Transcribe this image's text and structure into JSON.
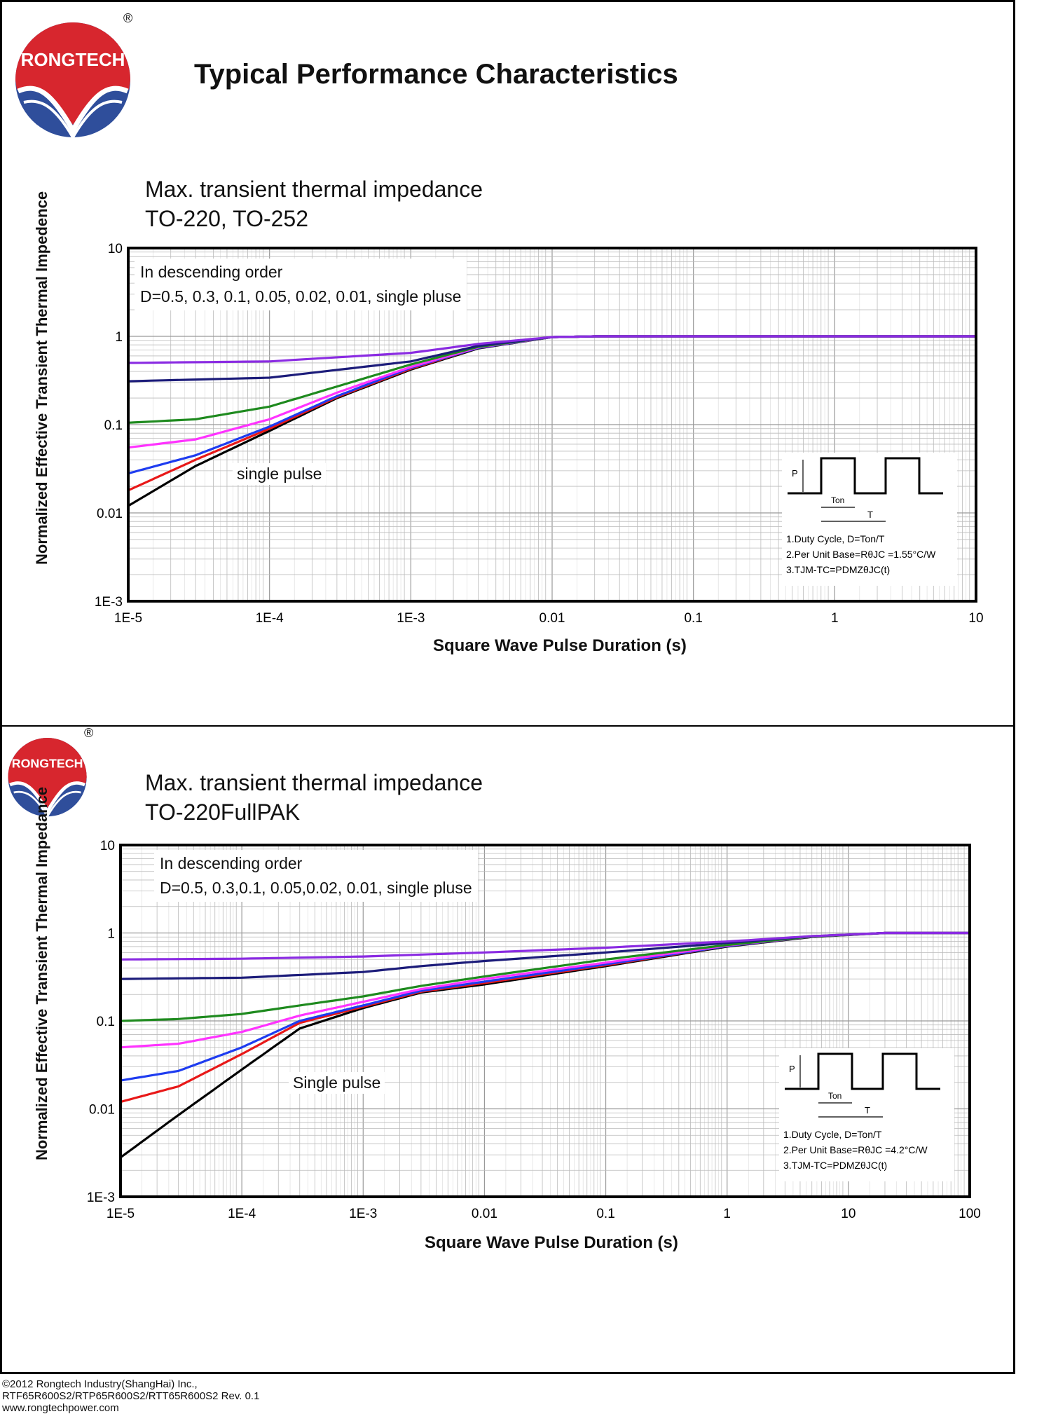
{
  "page": {
    "title": "Typical Performance Characteristics",
    "brand": "RONGTECH",
    "registered_mark": "®"
  },
  "footer": {
    "copyright": "©2012 Rongtech Industry(ShangHai) Inc.,",
    "models": "RTF65R600S2/RTP65R600S2/RTT65R600S2  Rev. 0.1",
    "website": "www.rongtechpower.com"
  },
  "colors": {
    "d05": "#8a2be2",
    "d03": "#1c1c7a",
    "d01": "#1e8a1e",
    "d005": "#ff33ff",
    "d002": "#1e3cf0",
    "d001": "#e81818",
    "single": "#000000",
    "logo_red": "#d7262e",
    "logo_blue": "#2f4e9b"
  },
  "chart_data": [
    {
      "type": "line",
      "title": "Max. transient thermal impedance",
      "subtitle": "TO-220, TO-252",
      "xlabel": "Square Wave Pulse Duration (s)",
      "ylabel": "Normalized Effective Transient Thermal Impedence",
      "x_scale": "log",
      "y_scale": "log",
      "xlim": [
        1e-05,
        10
      ],
      "ylim": [
        0.001,
        10
      ],
      "x_ticks": [
        "1E-5",
        "1E-4",
        "1E-3",
        "0.01",
        "0.1",
        "1",
        "10"
      ],
      "y_ticks": [
        "1E-3",
        "0.01",
        "0.1",
        "1",
        "10"
      ],
      "grid": true,
      "legend_line1": "In descending order",
      "legend_line2": "D=0.5, 0.3, 0.1, 0.05, 0.02, 0.01, single pluse",
      "annotation": "single pulse",
      "notes": {
        "n1": "1.Duty Cycle, D=Ton/T",
        "n2": "2.Per Unit Base=RθJC =1.55°C/W",
        "n3": "3.TJM-TC=PDMZθJC(t)",
        "p": "P",
        "ton": "Ton",
        "t": "T"
      },
      "series": [
        {
          "name": "D=0.5",
          "color_key": "d05",
          "x": [
            1e-05,
            0.0001,
            0.001,
            0.003,
            0.01,
            0.02,
            10
          ],
          "y": [
            0.5,
            0.52,
            0.65,
            0.82,
            0.98,
            1.0,
            1.0
          ]
        },
        {
          "name": "D=0.3",
          "color_key": "d03",
          "x": [
            1e-05,
            0.0001,
            0.001,
            0.003,
            0.01,
            0.02,
            10
          ],
          "y": [
            0.31,
            0.34,
            0.52,
            0.78,
            0.98,
            1.0,
            1.0
          ]
        },
        {
          "name": "D=0.1",
          "color_key": "d01",
          "x": [
            1e-05,
            3e-05,
            0.0001,
            0.0003,
            0.001,
            0.003,
            0.01,
            0.02,
            10
          ],
          "y": [
            0.105,
            0.115,
            0.16,
            0.27,
            0.48,
            0.76,
            0.98,
            1.0,
            1.0
          ]
        },
        {
          "name": "D=0.05",
          "color_key": "d005",
          "x": [
            1e-05,
            3e-05,
            0.0001,
            0.0003,
            0.001,
            0.003,
            0.01,
            0.02,
            10
          ],
          "y": [
            0.055,
            0.068,
            0.115,
            0.23,
            0.45,
            0.75,
            0.98,
            1.0,
            1.0
          ]
        },
        {
          "name": "D=0.02",
          "color_key": "d002",
          "x": [
            1e-05,
            3e-05,
            0.0001,
            0.0003,
            0.001,
            0.003,
            0.01,
            0.02,
            10
          ],
          "y": [
            0.028,
            0.045,
            0.095,
            0.21,
            0.44,
            0.74,
            0.98,
            1.0,
            1.0
          ]
        },
        {
          "name": "D=0.01",
          "color_key": "d001",
          "x": [
            1e-05,
            3e-05,
            0.0001,
            0.0003,
            0.001,
            0.003,
            0.01,
            0.02,
            10
          ],
          "y": [
            0.018,
            0.04,
            0.09,
            0.205,
            0.43,
            0.74,
            0.98,
            1.0,
            1.0
          ]
        },
        {
          "name": "single pulse",
          "color_key": "single",
          "x": [
            1e-05,
            3e-05,
            0.0001,
            0.0003,
            0.001,
            0.003,
            0.01,
            0.02,
            10
          ],
          "y": [
            0.012,
            0.034,
            0.085,
            0.2,
            0.42,
            0.73,
            0.98,
            1.0,
            1.0
          ]
        }
      ]
    },
    {
      "type": "line",
      "title": "Max. transient thermal impedance",
      "subtitle": "TO-220FullPAK",
      "xlabel": "Square Wave Pulse Duration (s)",
      "ylabel": "Normalized Effective Transient Thermal Impedance",
      "x_scale": "log",
      "y_scale": "log",
      "xlim": [
        1e-05,
        100
      ],
      "ylim": [
        0.001,
        10
      ],
      "x_ticks": [
        "1E-5",
        "1E-4",
        "1E-3",
        "0.01",
        "0.1",
        "1",
        "10",
        "100"
      ],
      "y_ticks": [
        "1E-3",
        "0.01",
        "0.1",
        "1",
        "10"
      ],
      "grid": true,
      "legend_line1": "In descending order",
      "legend_line2": "D=0.5, 0.3,0.1, 0.05,0.02, 0.01, single pluse",
      "annotation": "Single pulse",
      "notes": {
        "n1": "1.Duty Cycle, D=Ton/T",
        "n2": "2.Per Unit Base=RθJC =4.2°C/W",
        "n3": "3.TJM-TC=PDMZθJC(t)",
        "p": "P",
        "ton": "Ton",
        "t": "T"
      },
      "series": [
        {
          "name": "D=0.5",
          "color_key": "d05",
          "x": [
            1e-05,
            0.0001,
            0.001,
            0.01,
            0.1,
            1,
            5,
            20,
            100
          ],
          "y": [
            0.5,
            0.51,
            0.54,
            0.6,
            0.68,
            0.8,
            0.92,
            1.0,
            1.0
          ]
        },
        {
          "name": "D=0.3",
          "color_key": "d03",
          "x": [
            1e-05,
            0.0001,
            0.001,
            0.003,
            0.01,
            0.1,
            1,
            5,
            20,
            100
          ],
          "y": [
            0.3,
            0.31,
            0.36,
            0.42,
            0.48,
            0.6,
            0.77,
            0.92,
            1.0,
            1.0
          ]
        },
        {
          "name": "D=0.1",
          "color_key": "d01",
          "x": [
            1e-05,
            3e-05,
            0.0001,
            0.0003,
            0.001,
            0.003,
            0.01,
            0.1,
            1,
            5,
            20,
            100
          ],
          "y": [
            0.1,
            0.105,
            0.12,
            0.15,
            0.19,
            0.25,
            0.32,
            0.5,
            0.73,
            0.91,
            1.0,
            1.0
          ]
        },
        {
          "name": "D=0.05",
          "color_key": "d005",
          "x": [
            1e-05,
            3e-05,
            0.0001,
            0.0003,
            0.001,
            0.003,
            0.01,
            0.1,
            1,
            5,
            20,
            100
          ],
          "y": [
            0.05,
            0.055,
            0.075,
            0.115,
            0.165,
            0.23,
            0.3,
            0.46,
            0.72,
            0.91,
            1.0,
            1.0
          ]
        },
        {
          "name": "D=0.02",
          "color_key": "d002",
          "x": [
            1e-05,
            3e-05,
            0.0001,
            0.0003,
            0.001,
            0.003,
            0.01,
            0.1,
            1,
            5,
            20,
            100
          ],
          "y": [
            0.021,
            0.027,
            0.05,
            0.1,
            0.15,
            0.22,
            0.28,
            0.44,
            0.71,
            0.91,
            1.0,
            1.0
          ]
        },
        {
          "name": "D=0.01",
          "color_key": "d001",
          "x": [
            1e-05,
            3e-05,
            0.0001,
            0.0003,
            0.001,
            0.003,
            0.01,
            0.1,
            1,
            5,
            20,
            100
          ],
          "y": [
            0.012,
            0.018,
            0.042,
            0.095,
            0.145,
            0.215,
            0.27,
            0.43,
            0.71,
            0.91,
            1.0,
            1.0
          ]
        },
        {
          "name": "single pulse",
          "color_key": "single",
          "x": [
            1e-05,
            3e-05,
            0.0001,
            0.0003,
            0.001,
            0.003,
            0.01,
            0.1,
            1,
            5,
            20,
            100
          ],
          "y": [
            0.0028,
            0.0085,
            0.028,
            0.082,
            0.14,
            0.21,
            0.26,
            0.42,
            0.7,
            0.9,
            1.0,
            1.0
          ]
        }
      ]
    }
  ]
}
